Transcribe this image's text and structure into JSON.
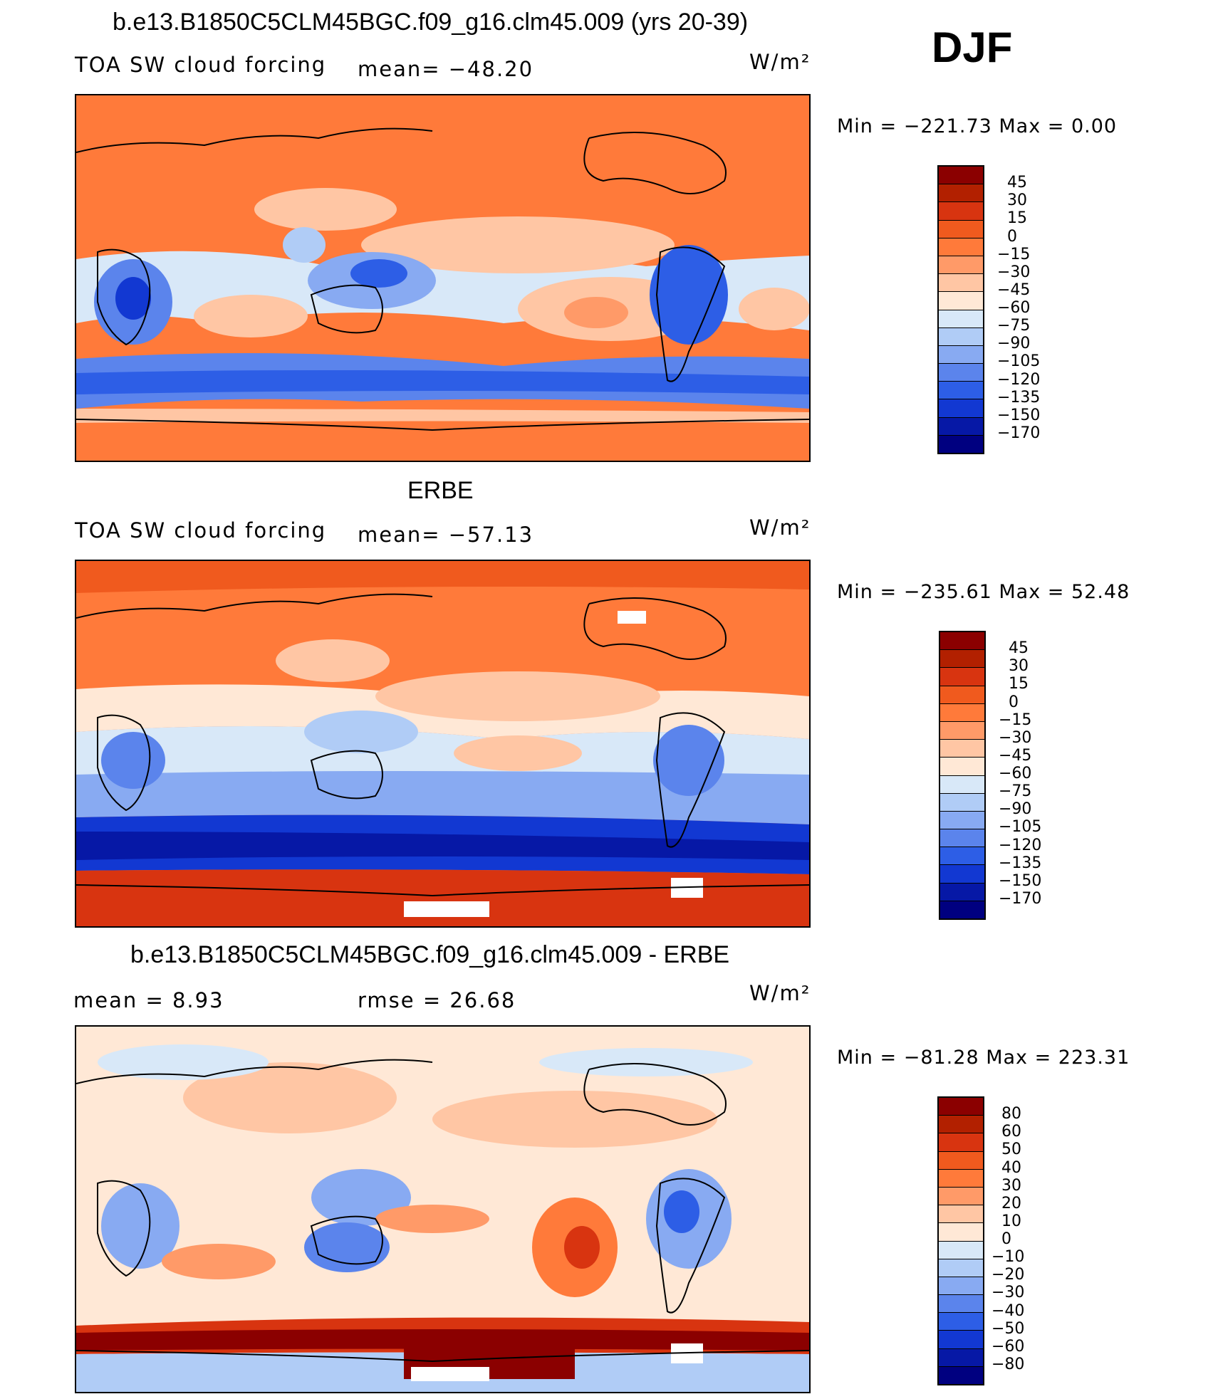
{
  "header": {
    "season": "DJF"
  },
  "panels": [
    {
      "title": "b.e13.B1850C5CLM45BGC.f09_g16.clm45.009 (yrs 20-39)",
      "variable": "TOA SW cloud forcing",
      "stat": "mean= −48.20",
      "stat2": "",
      "units": "W/m²",
      "min_max": "Min  =  −221.73  Max  =     0.00",
      "colorbar_labels": [
        "45",
        "30",
        "15",
        "0",
        "−15",
        "−30",
        "−45",
        "−60",
        "−75",
        "−90",
        "−105",
        "−120",
        "−135",
        "−150",
        "−170"
      ],
      "colorbar_colors": [
        "#8b0000",
        "#b22000",
        "#d83410",
        "#f05a1e",
        "#ff7a3a",
        "#ff9a68",
        "#ffc6a4",
        "#ffe8d6",
        "#d8e8f8",
        "#b0ccf6",
        "#88aaf2",
        "#5b84ec",
        "#2d5ee6",
        "#1238d2",
        "#0618a6",
        "#000080"
      ]
    },
    {
      "title": "ERBE",
      "variable": "TOA SW cloud forcing",
      "stat": "mean= −57.13",
      "stat2": "",
      "units": "W/m²",
      "min_max": "Min  =  −235.61  Max  =   52.48",
      "colorbar_labels": [
        "45",
        "30",
        "15",
        "0",
        "−15",
        "−30",
        "−45",
        "−60",
        "−75",
        "−90",
        "−105",
        "−120",
        "−135",
        "−150",
        "−170"
      ],
      "colorbar_colors": [
        "#8b0000",
        "#b22000",
        "#d83410",
        "#f05a1e",
        "#ff7a3a",
        "#ff9a68",
        "#ffc6a4",
        "#ffe8d6",
        "#d8e8f8",
        "#b0ccf6",
        "#88aaf2",
        "#5b84ec",
        "#2d5ee6",
        "#1238d2",
        "#0618a6",
        "#000080"
      ]
    },
    {
      "title": "b.e13.B1850C5CLM45BGC.f09_g16.clm45.009 - ERBE",
      "variable": "",
      "stat": "mean  =     8.93",
      "stat2": "rmse  =   26.68",
      "units": "W/m²",
      "min_max": "Min  =  −81.28  Max  =  223.31",
      "colorbar_labels": [
        "80",
        "60",
        "50",
        "40",
        "30",
        "20",
        "10",
        "0",
        "−10",
        "−20",
        "−30",
        "−40",
        "−50",
        "−60",
        "−80"
      ],
      "colorbar_colors": [
        "#8b0000",
        "#b22000",
        "#d83410",
        "#f05a1e",
        "#ff7a3a",
        "#ff9a68",
        "#ffc6a4",
        "#ffe8d6",
        "#d8e8f8",
        "#b0ccf6",
        "#88aaf2",
        "#5b84ec",
        "#2d5ee6",
        "#1238d2",
        "#0618a6",
        "#000080"
      ]
    }
  ]
}
